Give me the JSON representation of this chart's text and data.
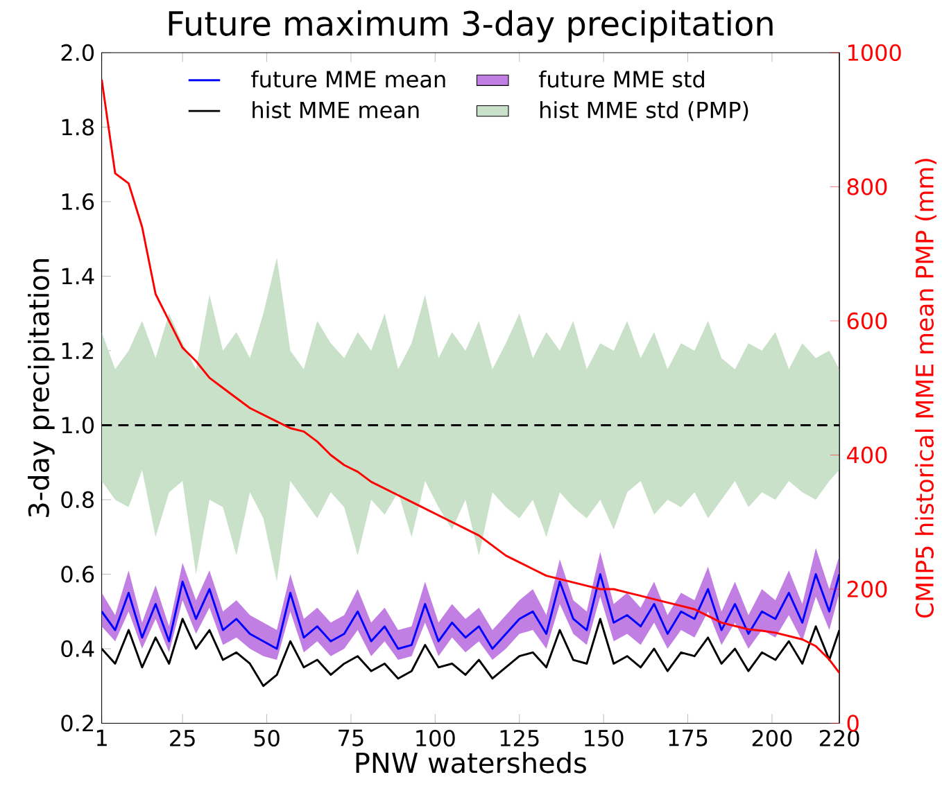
{
  "chart_data": {
    "type": "line",
    "title": "Future maximum 3-day precipitation",
    "xlabel": "PNW watersheds",
    "ylabel": "3-day precipitation",
    "y2label": "CMIP5 historical MME mean PMP (mm)",
    "x": [
      1,
      5,
      9,
      13,
      17,
      21,
      25,
      29,
      33,
      37,
      41,
      45,
      49,
      53,
      57,
      61,
      65,
      69,
      73,
      77,
      81,
      85,
      89,
      93,
      97,
      101,
      105,
      109,
      113,
      117,
      121,
      125,
      129,
      133,
      137,
      141,
      145,
      149,
      153,
      157,
      161,
      165,
      169,
      173,
      177,
      181,
      185,
      189,
      193,
      197,
      201,
      205,
      209,
      213,
      217,
      220
    ],
    "series": [
      {
        "name": "hist MME std (PMP)",
        "color": "#c9e0c9",
        "values": [
          null,
          null,
          null,
          null,
          null,
          null,
          null,
          null,
          null,
          null,
          null,
          null,
          null,
          null,
          null,
          null,
          null,
          null,
          null,
          null,
          null,
          null,
          null,
          null,
          null,
          null,
          null,
          null,
          null,
          null,
          null,
          null,
          null,
          null,
          null,
          null,
          null,
          null,
          null,
          null,
          null,
          null,
          null,
          null,
          null,
          null,
          null,
          null,
          null,
          null,
          null,
          null,
          null,
          null,
          null,
          null
        ],
        "upper": [
          1.25,
          1.15,
          1.2,
          1.28,
          1.18,
          1.3,
          1.22,
          1.15,
          1.35,
          1.2,
          1.25,
          1.18,
          1.3,
          1.45,
          1.2,
          1.15,
          1.28,
          1.22,
          1.18,
          1.25,
          1.2,
          1.3,
          1.15,
          1.22,
          1.35,
          1.18,
          1.25,
          1.2,
          1.28,
          1.15,
          1.22,
          1.3,
          1.18,
          1.25,
          1.2,
          1.28,
          1.15,
          1.22,
          1.2,
          1.28,
          1.18,
          1.25,
          1.15,
          1.22,
          1.2,
          1.28,
          1.18,
          1.15,
          1.22,
          1.2,
          1.25,
          1.15,
          1.22,
          1.18,
          1.2,
          1.15
        ],
        "lower": [
          0.85,
          0.8,
          0.78,
          0.88,
          0.7,
          0.82,
          0.85,
          0.6,
          0.8,
          0.78,
          0.65,
          0.82,
          0.75,
          0.58,
          0.85,
          0.8,
          0.75,
          0.82,
          0.78,
          0.65,
          0.8,
          0.76,
          0.82,
          0.7,
          0.85,
          0.78,
          0.72,
          0.8,
          0.65,
          0.82,
          0.78,
          0.75,
          0.8,
          0.7,
          0.82,
          0.78,
          0.75,
          0.8,
          0.72,
          0.82,
          0.85,
          0.76,
          0.8,
          0.78,
          0.82,
          0.75,
          0.8,
          0.85,
          0.78,
          0.82,
          0.8,
          0.85,
          0.82,
          0.8,
          0.85,
          0.88
        ]
      },
      {
        "name": "future MME std",
        "color": "#c27fe3",
        "values": [
          null,
          null,
          null,
          null,
          null,
          null,
          null,
          null,
          null,
          null,
          null,
          null,
          null,
          null,
          null,
          null,
          null,
          null,
          null,
          null,
          null,
          null,
          null,
          null,
          null,
          null,
          null,
          null,
          null,
          null,
          null,
          null,
          null,
          null,
          null,
          null,
          null,
          null,
          null,
          null,
          null,
          null,
          null,
          null,
          null,
          null,
          null,
          null,
          null,
          null,
          null,
          null,
          null,
          null,
          null,
          null
        ],
        "upper": [
          0.55,
          0.49,
          0.61,
          0.47,
          0.57,
          0.46,
          0.63,
          0.53,
          0.61,
          0.5,
          0.53,
          0.49,
          0.47,
          0.45,
          0.6,
          0.48,
          0.51,
          0.47,
          0.49,
          0.56,
          0.47,
          0.51,
          0.45,
          0.46,
          0.58,
          0.47,
          0.52,
          0.48,
          0.51,
          0.45,
          0.49,
          0.53,
          0.56,
          0.49,
          0.64,
          0.53,
          0.5,
          0.66,
          0.52,
          0.55,
          0.51,
          0.58,
          0.49,
          0.55,
          0.53,
          0.62,
          0.5,
          0.58,
          0.49,
          0.56,
          0.53,
          0.61,
          0.52,
          0.67,
          0.56,
          0.65
        ],
        "lower": [
          0.46,
          0.42,
          0.5,
          0.4,
          0.48,
          0.39,
          0.53,
          0.44,
          0.51,
          0.41,
          0.43,
          0.4,
          0.38,
          0.37,
          0.5,
          0.39,
          0.42,
          0.38,
          0.4,
          0.45,
          0.38,
          0.42,
          0.37,
          0.38,
          0.47,
          0.38,
          0.43,
          0.39,
          0.42,
          0.37,
          0.4,
          0.44,
          0.45,
          0.4,
          0.52,
          0.44,
          0.41,
          0.54,
          0.42,
          0.44,
          0.41,
          0.47,
          0.4,
          0.45,
          0.43,
          0.5,
          0.41,
          0.47,
          0.4,
          0.45,
          0.43,
          0.49,
          0.42,
          0.54,
          0.45,
          0.55
        ]
      },
      {
        "name": "hist MME mean",
        "color": "#000000",
        "values": [
          0.4,
          0.36,
          0.45,
          0.35,
          0.43,
          0.36,
          0.48,
          0.4,
          0.45,
          0.37,
          0.39,
          0.36,
          0.3,
          0.33,
          0.42,
          0.35,
          0.37,
          0.33,
          0.36,
          0.38,
          0.34,
          0.36,
          0.32,
          0.34,
          0.41,
          0.35,
          0.36,
          0.33,
          0.37,
          0.32,
          0.35,
          0.38,
          0.39,
          0.35,
          0.45,
          0.37,
          0.36,
          0.48,
          0.36,
          0.38,
          0.35,
          0.4,
          0.34,
          0.39,
          0.38,
          0.43,
          0.36,
          0.4,
          0.34,
          0.39,
          0.37,
          0.42,
          0.36,
          0.46,
          0.37,
          0.45
        ]
      },
      {
        "name": "future MME mean",
        "color": "#0000ff",
        "values": [
          0.5,
          0.45,
          0.55,
          0.43,
          0.52,
          0.42,
          0.58,
          0.48,
          0.56,
          0.45,
          0.48,
          0.44,
          0.42,
          0.4,
          0.55,
          0.43,
          0.46,
          0.42,
          0.44,
          0.5,
          0.42,
          0.46,
          0.4,
          0.41,
          0.52,
          0.42,
          0.47,
          0.43,
          0.46,
          0.4,
          0.44,
          0.48,
          0.5,
          0.44,
          0.58,
          0.48,
          0.45,
          0.6,
          0.47,
          0.49,
          0.46,
          0.52,
          0.44,
          0.5,
          0.48,
          0.56,
          0.45,
          0.52,
          0.44,
          0.5,
          0.48,
          0.55,
          0.47,
          0.6,
          0.5,
          0.6
        ]
      },
      {
        "color": "#ff0000",
        "axis": "y2",
        "values": [
          960,
          820,
          805,
          740,
          640,
          600,
          560,
          540,
          515,
          500,
          485,
          470,
          460,
          450,
          440,
          435,
          420,
          400,
          385,
          375,
          360,
          350,
          340,
          330,
          320,
          310,
          300,
          290,
          280,
          265,
          250,
          240,
          230,
          220,
          215,
          210,
          205,
          200,
          200,
          195,
          190,
          185,
          180,
          175,
          170,
          160,
          150,
          145,
          140,
          138,
          135,
          130,
          125,
          115,
          95,
          75
        ]
      }
    ],
    "xlim": [
      1,
      220
    ],
    "xticks": [
      1,
      25,
      50,
      75,
      100,
      125,
      150,
      175,
      200,
      220
    ],
    "ylim": [
      0.2,
      2.0
    ],
    "yticks": [
      {
        "value": 0.2,
        "label": "0.2"
      },
      {
        "value": 0.4,
        "label": "0.4"
      },
      {
        "value": 0.6,
        "label": "0.6"
      },
      {
        "value": 0.8,
        "label": "0.8"
      },
      {
        "value": 1.0,
        "label": "1.0"
      },
      {
        "value": 1.2,
        "label": "1.2"
      },
      {
        "value": 1.4,
        "label": "1.4"
      },
      {
        "value": 1.6,
        "label": "1.6"
      },
      {
        "value": 1.8,
        "label": "1.8"
      },
      {
        "value": 2.0,
        "label": "2.0"
      }
    ],
    "y2lim": [
      0,
      1000
    ],
    "y2ticks": [
      0,
      200,
      400,
      600,
      800,
      1000
    ],
    "ref_lines": [
      {
        "axis": "y",
        "value": 1.0,
        "color": "#000000",
        "line_style": "dashed"
      }
    ],
    "legend": "top",
    "grid": false,
    "marker": "none",
    "line_style": "solid"
  }
}
